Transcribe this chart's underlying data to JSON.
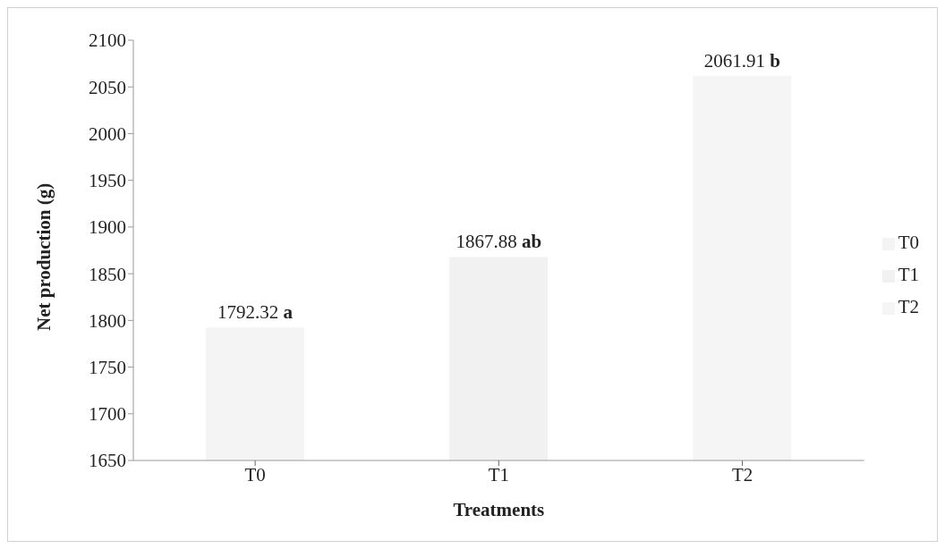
{
  "chart_data": {
    "type": "bar",
    "xlabel": "Treatments",
    "ylabel": "Net production (g)",
    "categories": [
      "T0",
      "T1",
      "T2"
    ],
    "stacked": true,
    "series": [
      {
        "name": "T0",
        "color": "#f4f4f4",
        "values": [
          1792.32,
          null,
          null
        ],
        "value_labels": [
          "1792.32 a",
          null,
          null
        ]
      },
      {
        "name": "T1",
        "color": "#f1f1f1",
        "values": [
          null,
          1867.88,
          null
        ],
        "value_labels": [
          null,
          "1867.88 ab",
          null
        ]
      },
      {
        "name": "T2",
        "color": "#f5f5f5",
        "values": [
          null,
          null,
          2061.91
        ],
        "value_labels": [
          null,
          null,
          "2061.91 b"
        ]
      }
    ],
    "ylim": [
      1650,
      2100
    ],
    "yticks": [
      1650,
      1700,
      1750,
      1800,
      1850,
      1900,
      1950,
      2000,
      2050,
      2100
    ],
    "legend": "right"
  }
}
